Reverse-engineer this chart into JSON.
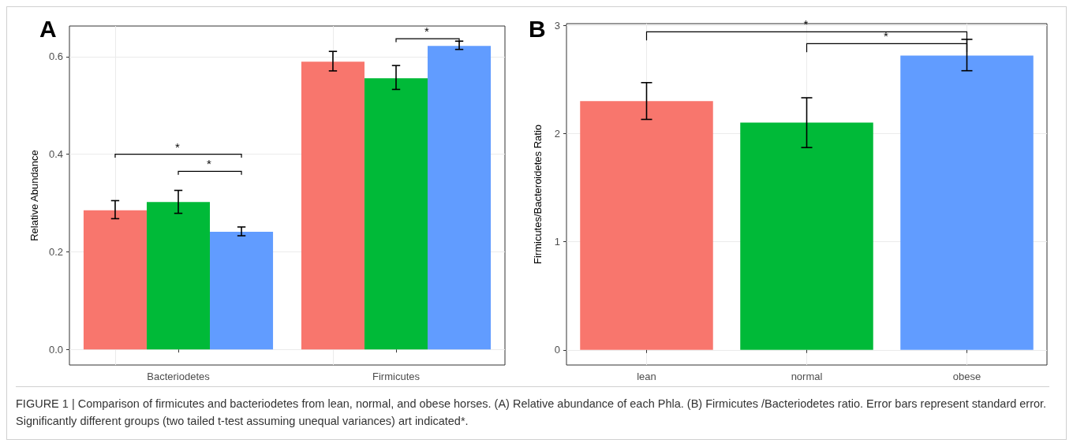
{
  "chart_data": [
    {
      "type": "bar",
      "ylabel": "Relative Abundance",
      "categories": [
        "Bacteriodetes",
        "Firmicutes"
      ],
      "series": [
        {
          "color": "#f8766d",
          "values": [
            0.285,
            0.59
          ],
          "errors": [
            [
              0.268,
              0.305
            ],
            [
              0.571,
              0.611
            ]
          ]
        },
        {
          "color": "#00ba38",
          "values": [
            0.302,
            0.556
          ],
          "errors": [
            [
              0.279,
              0.326
            ],
            [
              0.533,
              0.582
            ]
          ]
        },
        {
          "color": "#619cff",
          "values": [
            0.241,
            0.622
          ],
          "errors": [
            [
              0.233,
              0.251
            ],
            [
              0.615,
              0.632
            ]
          ]
        }
      ],
      "ylim": [
        -0.032,
        0.663
      ],
      "yticks": [
        {
          "value": 0,
          "label": "0.0"
        },
        {
          "value": 0.2,
          "label": "0.2"
        },
        {
          "value": 0.4,
          "label": "0.4"
        },
        {
          "value": 0.6,
          "label": "0.6"
        }
      ],
      "grid": true,
      "annotations": [
        "A",
        "*",
        "*",
        "*"
      ]
    },
    {
      "type": "bar",
      "ylabel": "Firmicutes/Bacteroidetes Ratio",
      "categories": [
        "lean",
        "normal",
        "obese"
      ],
      "values": [
        2.3,
        2.1,
        2.72
      ],
      "colors": [
        "#f8766d",
        "#00ba38",
        "#619cff"
      ],
      "errors": [
        [
          2.13,
          2.47
        ],
        [
          1.87,
          2.33
        ],
        [
          2.58,
          2.87
        ]
      ],
      "ylim": [
        -0.14,
        3.015
      ],
      "yticks": [
        0,
        1,
        2,
        3
      ],
      "grid": true,
      "annotations": [
        "B",
        "*",
        "*",
        "FIGURE 1 | Comparison of firmicutes and bacteriodetes from lean, normal, and obese horses. (A) Relative abundance of each Phla. (B) Firmicutes /Bacteriodetes ratio. Error bars represent standard error. Significantly different groups (two tailed t-test assuming unequal variances) art indicated*."
      ]
    }
  ]
}
